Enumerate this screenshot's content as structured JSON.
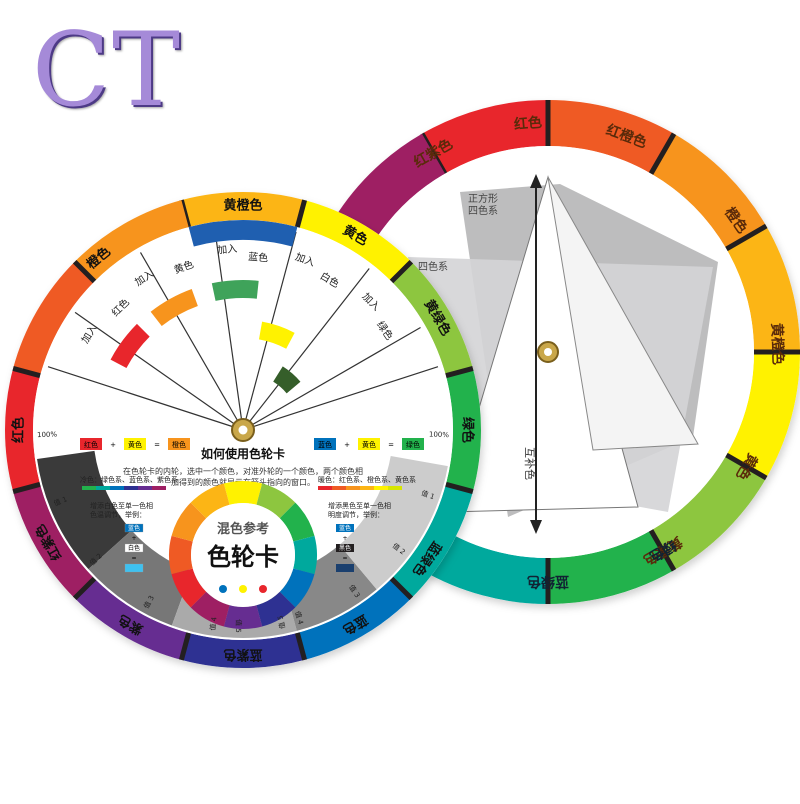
{
  "logo_text": "CT",
  "colors": {
    "red": "#e8262c",
    "red_orange": "#ef5a24",
    "orange": "#f7941d",
    "yellow_orange": "#fcb515",
    "yellow": "#fff200",
    "yellow_green": "#8dc63f",
    "green": "#22b24c",
    "blue_green": "#00a99d",
    "blue": "#0072bc",
    "blue_violet": "#2e3192",
    "violet": "#662d91",
    "red_violet": "#9e1f63",
    "black": "#231f20",
    "gray": "#bcbec0"
  },
  "back_disc": {
    "ring_labels": [
      "红色",
      "红橙色",
      "橙色",
      "黄橙色",
      "黄色",
      "黄绿色",
      "绿色",
      "蓝绿色",
      "红紫色"
    ],
    "square_label": "正方形四色系",
    "four_color_label": "四色系",
    "complementary_label": "互补色"
  },
  "front_disc": {
    "ring_labels": [
      "黄橙色",
      "黄色",
      "黄绿色",
      "绿色",
      "蓝绿色",
      "蓝色",
      "蓝紫色",
      "紫色",
      "红紫色",
      "红色",
      "橙色"
    ],
    "add_labels": [
      "加入",
      "加入",
      "加入",
      "加入",
      "加入"
    ],
    "window_labels": [
      "红色",
      "黄色",
      "蓝色",
      "白色",
      "绿色"
    ],
    "instruction_title": "如何使用色轮卡",
    "instruction_text": "在色轮卡的内轮，选中一个颜色，对准外轮的一个颜色，两个颜色相加得到的颜色就显示在箭头指向的窗口。",
    "example_left": [
      "红色",
      "+",
      "黄色",
      "=",
      "橙色"
    ],
    "example_right": [
      "蓝色",
      "+",
      "黄色",
      "=",
      "绿色"
    ],
    "cool_colors": "冷色：绿色系、蓝色系、紫色系",
    "warm_colors": "暖色：红色系、橙色系、黄色系",
    "tint_note": "增添白色至单一色相色温调节，举例：",
    "shade_note": "增添黑色至单一色相明度调节，举例：",
    "tint_example": [
      "蓝色",
      "+",
      "白色",
      "=",
      ""
    ],
    "shade_example": [
      "蓝色",
      "+",
      "黑色",
      "=",
      ""
    ],
    "center_small": "混色参考",
    "center_big": "色轮卡",
    "scale_left": [
      "100%",
      "值 1",
      "值 2",
      "值 3",
      "值 4",
      "值 5"
    ],
    "scale_right": [
      "100%",
      "值 1",
      "值 2",
      "值 3",
      "值 4",
      "值 5"
    ]
  }
}
